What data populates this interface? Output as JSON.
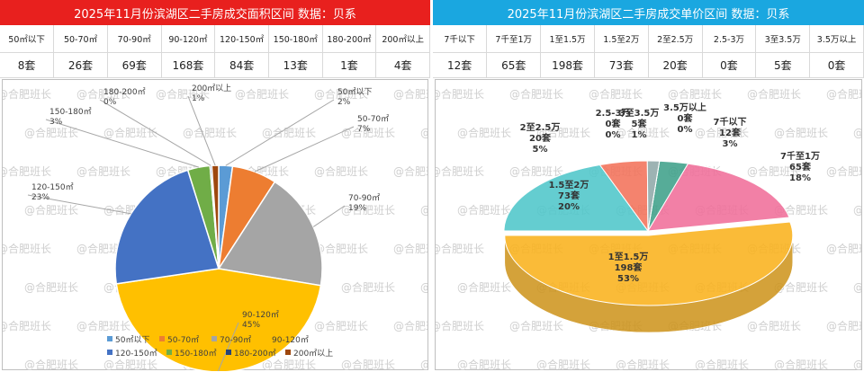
{
  "left": {
    "title": "2025年11月份滨湖区二手房成交面积区间 数据：贝系",
    "headers": [
      "50㎡以下",
      "50-70㎡",
      "70-90㎡",
      "90-120㎡",
      "120-150㎡",
      "150-180㎡",
      "180-200㎡",
      "200㎡以上"
    ],
    "values": [
      "8套",
      "26套",
      "69套",
      "168套",
      "84套",
      "13套",
      "1套",
      "4套"
    ]
  },
  "right": {
    "title": "2025年11月份滨湖区二手房成交单价区间 数据：贝系",
    "headers": [
      "7千以下",
      "7千至1万",
      "1至1.5万",
      "1.5至2万",
      "2至2.5万",
      "2.5-3万",
      "3至3.5万",
      "3.5万以上"
    ],
    "values": [
      "12套",
      "65套",
      "198套",
      "73套",
      "20套",
      "0套",
      "5套",
      "0套"
    ]
  },
  "watermark": "@合肥班长",
  "chart_data": [
    {
      "type": "pie",
      "title": "2025年11月份滨湖区二手房成交面积区间",
      "categories": [
        "50㎡以下",
        "50-70㎡",
        "70-90㎡",
        "90-120㎡",
        "120-150㎡",
        "150-180㎡",
        "180-200㎡",
        "200㎡以上"
      ],
      "values": [
        8,
        26,
        69,
        168,
        84,
        13,
        1,
        4
      ],
      "percent_labels": [
        "2%",
        "7%",
        "19%",
        "45%",
        "23%",
        "3%",
        "0%",
        "1%"
      ],
      "colors": [
        "#5b9bd5",
        "#ed7d31",
        "#a5a5a5",
        "#ffc000",
        "#4472c4",
        "#70ad47",
        "#264478",
        "#9e480e"
      ],
      "legend": "bottom"
    },
    {
      "type": "pie",
      "title": "2025年11月份滨湖区二手房成交单价区间",
      "categories": [
        "7千以下",
        "7千至1万",
        "1至1.5万",
        "1.5至2万",
        "2至2.5万",
        "2.5-3万",
        "3至3.5万",
        "3.5万以上"
      ],
      "values": [
        12,
        65,
        198,
        73,
        20,
        0,
        5,
        0
      ],
      "count_labels": [
        "12套",
        "65套",
        "198套",
        "73套",
        "20套",
        "0套",
        "5套",
        "0套"
      ],
      "percent_labels": [
        "3%",
        "18%",
        "53%",
        "20%",
        "5%",
        "0%",
        "1%",
        "0%"
      ],
      "colors": [
        "#3fa08a",
        "#f06e9a",
        "#f9b21c",
        "#4fc6c9",
        "#f3725a",
        "#8bcfa6",
        "#8fa8a8",
        "#6fb79a"
      ]
    }
  ]
}
